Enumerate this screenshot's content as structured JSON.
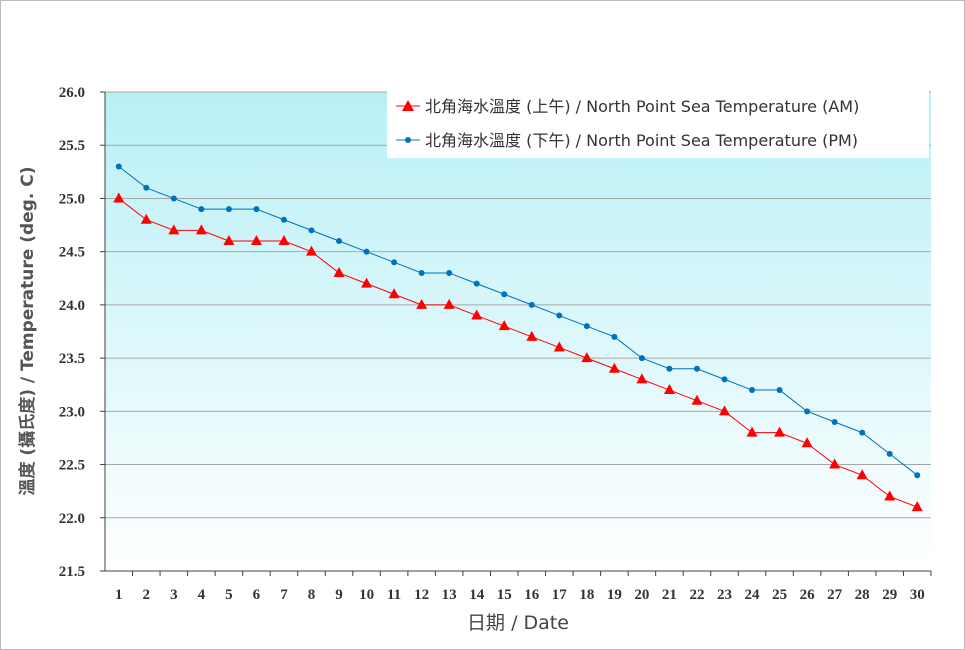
{
  "chart_data": {
    "type": "line",
    "xlabel": "日期 / Date",
    "ylabel": "溫度 (攝氏度) / Temperature (deg. C)",
    "ylim": [
      21.5,
      26.0
    ],
    "yticks": [
      "21.5",
      "22.0",
      "22.5",
      "23.0",
      "23.5",
      "24.0",
      "24.5",
      "25.0",
      "25.5",
      "26.0"
    ],
    "categories": [
      "1",
      "2",
      "3",
      "4",
      "5",
      "6",
      "7",
      "8",
      "9",
      "10",
      "11",
      "12",
      "13",
      "14",
      "15",
      "16",
      "17",
      "18",
      "19",
      "20",
      "21",
      "22",
      "23",
      "24",
      "25",
      "26",
      "27",
      "28",
      "29",
      "30"
    ],
    "grid": true,
    "legend_position": "top-right",
    "series": [
      {
        "name": "北角海水溫度 (上午) / North Point Sea Temperature (AM)",
        "color": "#ff0000",
        "marker": "triangle",
        "values": [
          25.0,
          24.8,
          24.7,
          24.7,
          24.6,
          24.6,
          24.6,
          24.5,
          24.3,
          24.2,
          24.1,
          24.0,
          24.0,
          23.9,
          23.8,
          23.7,
          23.6,
          23.5,
          23.4,
          23.3,
          23.2,
          23.1,
          23.0,
          22.8,
          22.8,
          22.7,
          22.5,
          22.4,
          22.2,
          22.1
        ]
      },
      {
        "name": "北角海水溫度 (下午) / North Point Sea Temperature (PM)",
        "color": "#0070c0",
        "marker": "circle",
        "values": [
          25.3,
          25.1,
          25.0,
          24.9,
          24.9,
          24.9,
          24.8,
          24.7,
          24.6,
          24.5,
          24.4,
          24.3,
          24.3,
          24.2,
          24.1,
          24.0,
          23.9,
          23.8,
          23.7,
          23.5,
          23.4,
          23.4,
          23.3,
          23.2,
          23.2,
          23.0,
          22.9,
          22.8,
          22.6,
          22.4
        ]
      }
    ],
    "background_gradient": [
      "#b8f0f6",
      "#ffffff"
    ]
  }
}
